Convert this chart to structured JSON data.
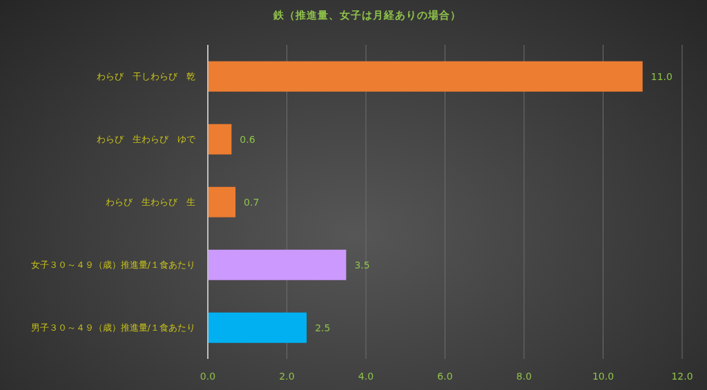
{
  "chart_data": {
    "type": "bar",
    "orientation": "horizontal",
    "title": "鉄（推進量、女子は月経ありの場合）",
    "categories": [
      "わらび　干しわらび　乾",
      "わらび　生わらび　ゆで",
      "わらび　生わらび　生",
      "女子３０～４９（歳）推進量/１食あたり",
      "男子３０～４９（歳）推進量/１食あたり"
    ],
    "values": [
      11.0,
      0.6,
      0.7,
      3.5,
      2.5
    ],
    "value_labels": [
      "11.0",
      "0.6",
      "0.7",
      "3.5",
      "2.5"
    ],
    "colors": [
      "#ed7d31",
      "#ed7d31",
      "#ed7d31",
      "#cc99ff",
      "#00b0f0"
    ],
    "xlim": [
      0,
      12
    ],
    "xticks": [
      {
        "value": 0,
        "label": "0.0"
      },
      {
        "value": 2,
        "label": "2.0"
      },
      {
        "value": 4,
        "label": "4.0"
      },
      {
        "value": 6,
        "label": "6.0"
      },
      {
        "value": 8,
        "label": "8.0"
      },
      {
        "value": 10,
        "label": "10.0"
      },
      {
        "value": 12,
        "label": "12.0"
      }
    ],
    "grid": "x",
    "legend": false
  }
}
